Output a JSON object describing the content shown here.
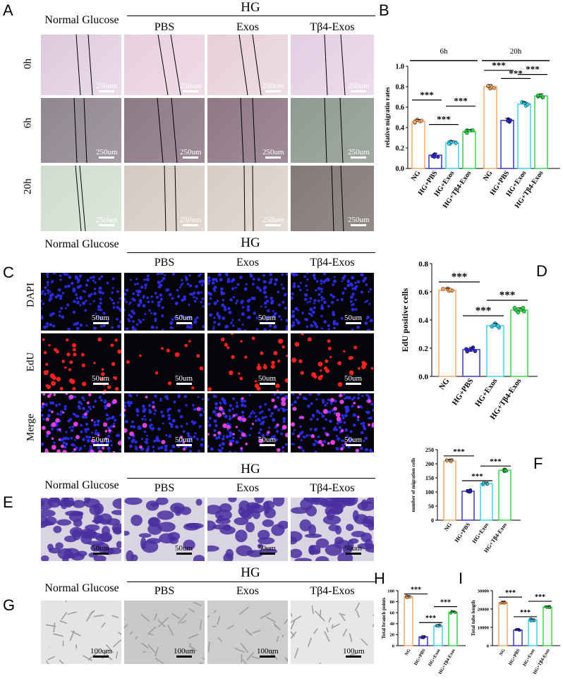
{
  "labels": {
    "A": "A",
    "B": "B",
    "C": "C",
    "D": "D",
    "E": "E",
    "F": "F",
    "G": "G",
    "H": "H",
    "I": "I"
  },
  "common": {
    "normal": "Normal Glucose",
    "hg": "HG",
    "pbs": "PBS",
    "exos": "Exos",
    "tb4": "Tβ4-Exos"
  },
  "rows": {
    "r0h": "0h",
    "r6h": "6h",
    "r20h": "20h",
    "dapi": "DAPI",
    "edu": "EdU",
    "merge": "Merge"
  },
  "scales": {
    "s250": "250um",
    "s50": "50um",
    "s100": "100um"
  },
  "stars": "***",
  "chart_data": [
    {
      "panel": "B",
      "type": "bar",
      "ylabel": "relative migratin rates",
      "ylim": [
        0,
        1.0
      ],
      "yticks": [
        "0.0",
        "0.2",
        "0.4",
        "0.6",
        "0.8",
        "1.0"
      ],
      "group_labels": [
        "6h",
        "20h"
      ],
      "categories": [
        "NG",
        "HG+PBS",
        "HG+Exos",
        "HG+Tβ4-Exos",
        "NG",
        "HG+PBS",
        "HG+Exos",
        "HG+Tβ4-Exos"
      ],
      "values": [
        0.46,
        0.13,
        0.25,
        0.36,
        0.8,
        0.47,
        0.63,
        0.71
      ],
      "significance": [
        "***",
        "***",
        "***",
        "***",
        "***",
        "***"
      ]
    },
    {
      "panel": "D",
      "type": "bar",
      "ylabel": "EdU  positive cells",
      "ylim": [
        0,
        0.8
      ],
      "yticks": [
        "0.0",
        "0.2",
        "0.4",
        "0.6",
        "0.8"
      ],
      "categories": [
        "NG",
        "HG+PBS",
        "HG+Exos",
        "HG+Tβ4-Exos"
      ],
      "values": [
        0.61,
        0.19,
        0.36,
        0.47
      ],
      "significance": [
        "***",
        "***",
        "***"
      ]
    },
    {
      "panel": "F",
      "type": "bar",
      "ylabel": "number of migration cells",
      "ylim": [
        0,
        250
      ],
      "yticks": [
        "0",
        "50",
        "100",
        "150",
        "200",
        "250"
      ],
      "categories": [
        "NG",
        "HG+PBS",
        "HG+Exos",
        "HG+Tβ4-Exos"
      ],
      "values": [
        210,
        103,
        130,
        177
      ],
      "significance": [
        "***",
        "***",
        "***"
      ]
    },
    {
      "panel": "H",
      "type": "bar",
      "ylabel": "Total branch points",
      "ylim": [
        0,
        100
      ],
      "yticks": [
        "0",
        "20",
        "40",
        "60",
        "80",
        "100"
      ],
      "categories": [
        "NG",
        "HG+PBS",
        "HG+Exos",
        "HG+Tβ4-Exos"
      ],
      "values": [
        89,
        16,
        36,
        61
      ],
      "significance": [
        "***",
        "***",
        "***"
      ]
    },
    {
      "panel": "I",
      "type": "bar",
      "ylabel": "Total tube length",
      "ylim": [
        0,
        30000
      ],
      "yticks": [
        "0",
        "10000",
        "20000",
        "30000"
      ],
      "categories": [
        "NG",
        "HG+PBS",
        "HG+Exos",
        "HG+Tβ4-Exos"
      ],
      "values": [
        23500,
        8500,
        14000,
        21000
      ],
      "significance": [
        "***",
        "***",
        "***"
      ]
    }
  ],
  "colors": {
    "ng": "#F6A45C",
    "pbs": "#2A2ACF",
    "exos": "#2FD0F2",
    "tb4": "#28D442"
  }
}
